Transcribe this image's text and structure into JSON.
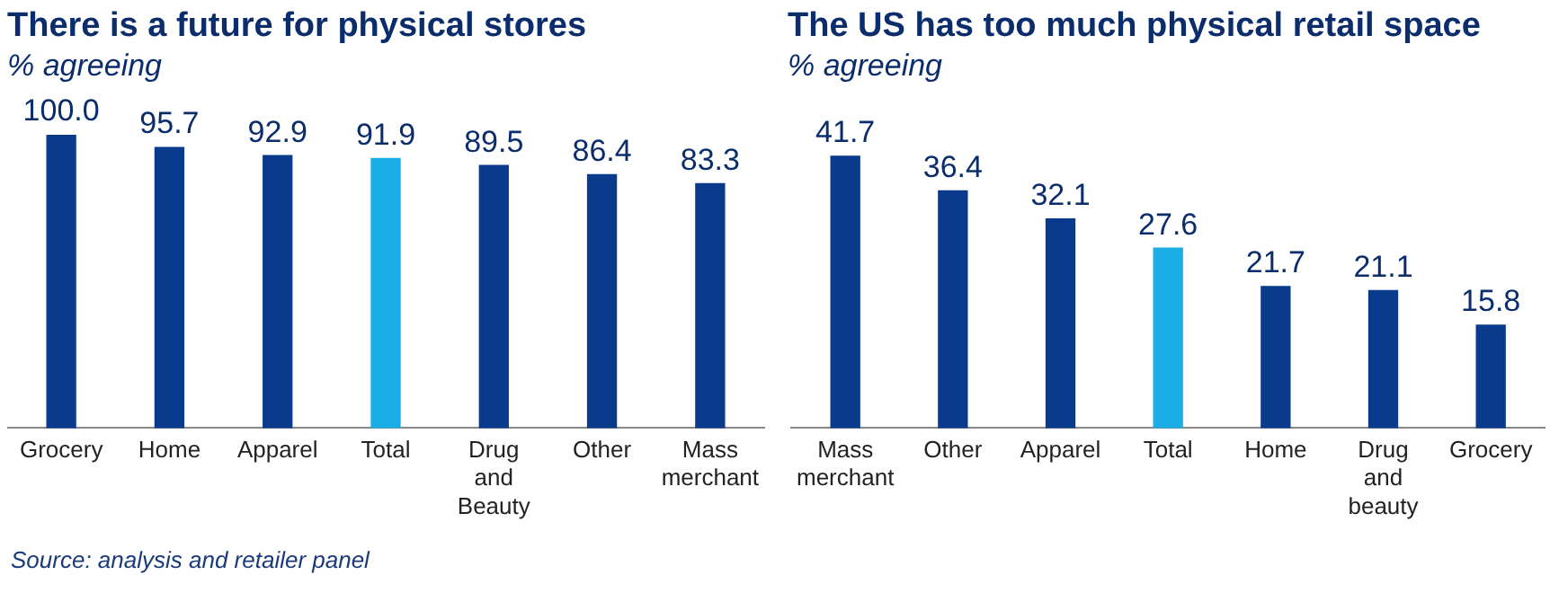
{
  "chart_data": [
    {
      "type": "bar",
      "title": "There is a future for physical stores",
      "subtitle": "% agreeing",
      "categories": [
        "Grocery",
        "Home",
        "Apparel",
        "Total",
        "Drug and Beauty",
        "Other",
        "Mass merchant"
      ],
      "values": [
        100.0,
        95.7,
        92.9,
        91.9,
        89.5,
        86.4,
        83.3
      ],
      "value_labels": [
        "100.0",
        "95.7",
        "92.9",
        "91.9",
        "89.5",
        "86.4",
        "83.3"
      ],
      "colors": [
        "#0a3a8c",
        "#0a3a8c",
        "#0a3a8c",
        "#1aade6",
        "#0a3a8c",
        "#0a3a8c",
        "#0a3a8c"
      ],
      "grid": false,
      "legend": false,
      "annotations": [
        "Source: analysis and retailer panel"
      ]
    },
    {
      "type": "bar",
      "title": "The US has too much physical retail space",
      "subtitle": "% agreeing",
      "categories": [
        "Mass merchant",
        "Other",
        "Apparel",
        "Total",
        "Home",
        "Drug and beauty",
        "Grocery"
      ],
      "values": [
        41.7,
        36.4,
        32.1,
        27.6,
        21.7,
        21.1,
        15.8
      ],
      "value_labels": [
        "41.7",
        "36.4",
        "32.1",
        "27.6",
        "21.7",
        "21.1",
        "15.8"
      ],
      "colors": [
        "#0a3a8c",
        "#0a3a8c",
        "#0a3a8c",
        "#1aade6",
        "#0a3a8c",
        "#0a3a8c",
        "#0a3a8c"
      ],
      "grid": false,
      "legend": false
    }
  ]
}
